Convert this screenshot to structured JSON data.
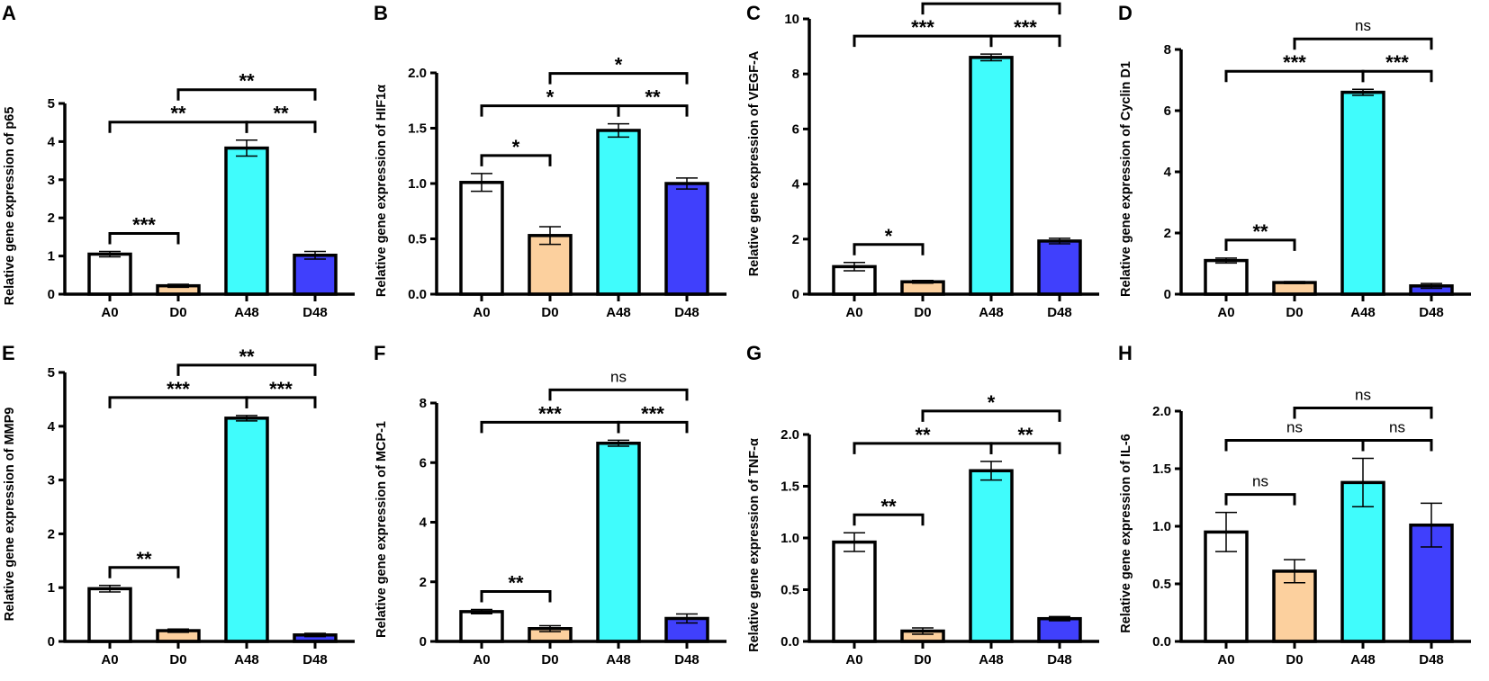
{
  "chart_data": [
    {
      "panel": "A",
      "type": "bar",
      "ylabel": "Relative gene expression of p65",
      "categories": [
        "A0",
        "D0",
        "A48",
        "D48"
      ],
      "values": [
        1.05,
        0.22,
        3.83,
        1.02
      ],
      "errors": [
        0.07,
        0.04,
        0.21,
        0.1
      ],
      "ylim": [
        0,
        5
      ],
      "yticks": [
        "0",
        "1",
        "2",
        "3",
        "4",
        "5"
      ],
      "significance": {
        "A0_D0": "***",
        "A0_A48": "**",
        "A48_D48": "**",
        "D0_D48": "**"
      }
    },
    {
      "panel": "B",
      "type": "bar",
      "ylabel": "Relative gene expression of HIF1α",
      "categories": [
        "A0",
        "D0",
        "A48",
        "D48"
      ],
      "values": [
        1.01,
        0.53,
        1.48,
        1.0
      ],
      "errors": [
        0.08,
        0.08,
        0.06,
        0.05
      ],
      "ylim": [
        0,
        2
      ],
      "yticks": [
        "0.0",
        "0.5",
        "1.0",
        "1.5",
        "2.0"
      ],
      "significance": {
        "A0_D0": "*",
        "A0_A48": "*",
        "A48_D48": "**",
        "D0_D48": "*"
      }
    },
    {
      "panel": "C",
      "type": "bar",
      "ylabel": "Relative gene expression of VEGF-A",
      "categories": [
        "A0",
        "D0",
        "A48",
        "D48"
      ],
      "values": [
        1.0,
        0.45,
        8.6,
        1.93
      ],
      "errors": [
        0.15,
        0.05,
        0.12,
        0.1
      ],
      "ylim": [
        0,
        10
      ],
      "yticks": [
        "0",
        "2",
        "4",
        "6",
        "8",
        "10"
      ],
      "significance": {
        "A0_D0": "*",
        "A0_A48": "***",
        "A48_D48": "***",
        "D0_D48": "**"
      }
    },
    {
      "panel": "D",
      "type": "bar",
      "ylabel": "Relative gene expression of Cyclin D1",
      "categories": [
        "A0",
        "D0",
        "A48",
        "D48"
      ],
      "values": [
        1.1,
        0.38,
        6.6,
        0.27
      ],
      "errors": [
        0.08,
        0.03,
        0.1,
        0.08
      ],
      "ylim": [
        0,
        8
      ],
      "yticks": [
        "0",
        "2",
        "4",
        "6",
        "8"
      ],
      "significance": {
        "A0_D0": "**",
        "A0_A48": "***",
        "A48_D48": "***",
        "D0_D48": "ns"
      }
    },
    {
      "panel": "E",
      "type": "bar",
      "ylabel": "Relative gene expression of MMP9",
      "categories": [
        "A0",
        "D0",
        "A48",
        "D48"
      ],
      "values": [
        0.98,
        0.2,
        4.15,
        0.12
      ],
      "errors": [
        0.06,
        0.03,
        0.05,
        0.03
      ],
      "ylim": [
        0,
        5
      ],
      "yticks": [
        "0",
        "1",
        "2",
        "3",
        "4",
        "5"
      ],
      "significance": {
        "A0_D0": "**",
        "A0_A48": "***",
        "A48_D48": "***",
        "D0_D48": "**"
      }
    },
    {
      "panel": "F",
      "type": "bar",
      "ylabel": "Relative gene expression of MCP-1",
      "categories": [
        "A0",
        "D0",
        "A48",
        "D48"
      ],
      "values": [
        1.0,
        0.43,
        6.65,
        0.77
      ],
      "errors": [
        0.07,
        0.1,
        0.1,
        0.15
      ],
      "ylim": [
        0,
        8
      ],
      "yticks": [
        "0",
        "2",
        "4",
        "6",
        "8"
      ],
      "significance": {
        "A0_D0": "**",
        "A0_A48": "***",
        "A48_D48": "***",
        "D0_D48": "ns"
      }
    },
    {
      "panel": "G",
      "type": "bar",
      "ylabel": "Relative gene expression of TNF-α",
      "categories": [
        "A0",
        "D0",
        "A48",
        "D48"
      ],
      "values": [
        0.96,
        0.1,
        1.65,
        0.22
      ],
      "errors": [
        0.09,
        0.03,
        0.09,
        0.02
      ],
      "ylim": [
        0,
        2
      ],
      "yticks": [
        "0.0",
        "0.5",
        "1.0",
        "1.5",
        "2.0"
      ],
      "significance": {
        "A0_D0": "**",
        "A0_A48": "**",
        "A48_D48": "**",
        "D0_D48": "*"
      }
    },
    {
      "panel": "H",
      "type": "bar",
      "ylabel": "Relative gene expression of IL-6",
      "categories": [
        "A0",
        "D0",
        "A48",
        "D48"
      ],
      "values": [
        0.95,
        0.61,
        1.38,
        1.01
      ],
      "errors": [
        0.17,
        0.1,
        0.21,
        0.19
      ],
      "ylim": [
        0,
        2
      ],
      "yticks": [
        "0.0",
        "0.5",
        "1.0",
        "1.5",
        "2.0"
      ],
      "significance": {
        "A0_D0": "ns",
        "A0_A48": "ns",
        "A48_D48": "ns",
        "D0_D48": "ns"
      }
    }
  ],
  "colors": {
    "A0": "#ffffff",
    "D0": "#fcd09e",
    "A48": "#40fcfc",
    "D48": "#4040fc"
  }
}
